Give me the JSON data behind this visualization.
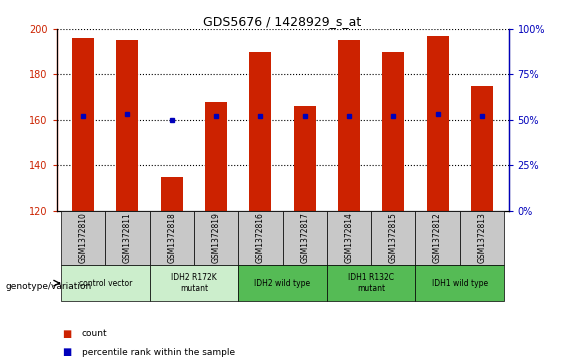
{
  "title": "GDS5676 / 1428929_s_at",
  "samples": [
    "GSM1372810",
    "GSM1372811",
    "GSM1372818",
    "GSM1372819",
    "GSM1372816",
    "GSM1372817",
    "GSM1372814",
    "GSM1372815",
    "GSM1372812",
    "GSM1372813"
  ],
  "counts": [
    196,
    195,
    135,
    168,
    190,
    166,
    195,
    190,
    197,
    175
  ],
  "percentile_ranks": [
    52,
    53,
    50,
    52,
    52,
    52,
    52,
    52,
    53,
    52
  ],
  "y_min": 120,
  "y_max": 200,
  "y_ticks": [
    120,
    140,
    160,
    180,
    200
  ],
  "y2_ticks": [
    0,
    25,
    50,
    75,
    100
  ],
  "bar_color": "#CC2200",
  "dot_color": "#0000BB",
  "bg_sample_row": "#C8C8C8",
  "genotype_groups": [
    {
      "label": "control vector",
      "start": 0,
      "end": 2,
      "color": "#CCEECC"
    },
    {
      "label": "IDH2 R172K\nmutant",
      "start": 2,
      "end": 4,
      "color": "#CCEECC"
    },
    {
      "label": "IDH2 wild type",
      "start": 4,
      "end": 6,
      "color": "#55BB55"
    },
    {
      "label": "IDH1 R132C\nmutant",
      "start": 6,
      "end": 8,
      "color": "#55BB55"
    },
    {
      "label": "IDH1 wild type",
      "start": 8,
      "end": 10,
      "color": "#55BB55"
    }
  ],
  "xlabel_genotype": "genotype/variation",
  "legend_count_label": "count",
  "legend_percentile_label": "percentile rank within the sample"
}
